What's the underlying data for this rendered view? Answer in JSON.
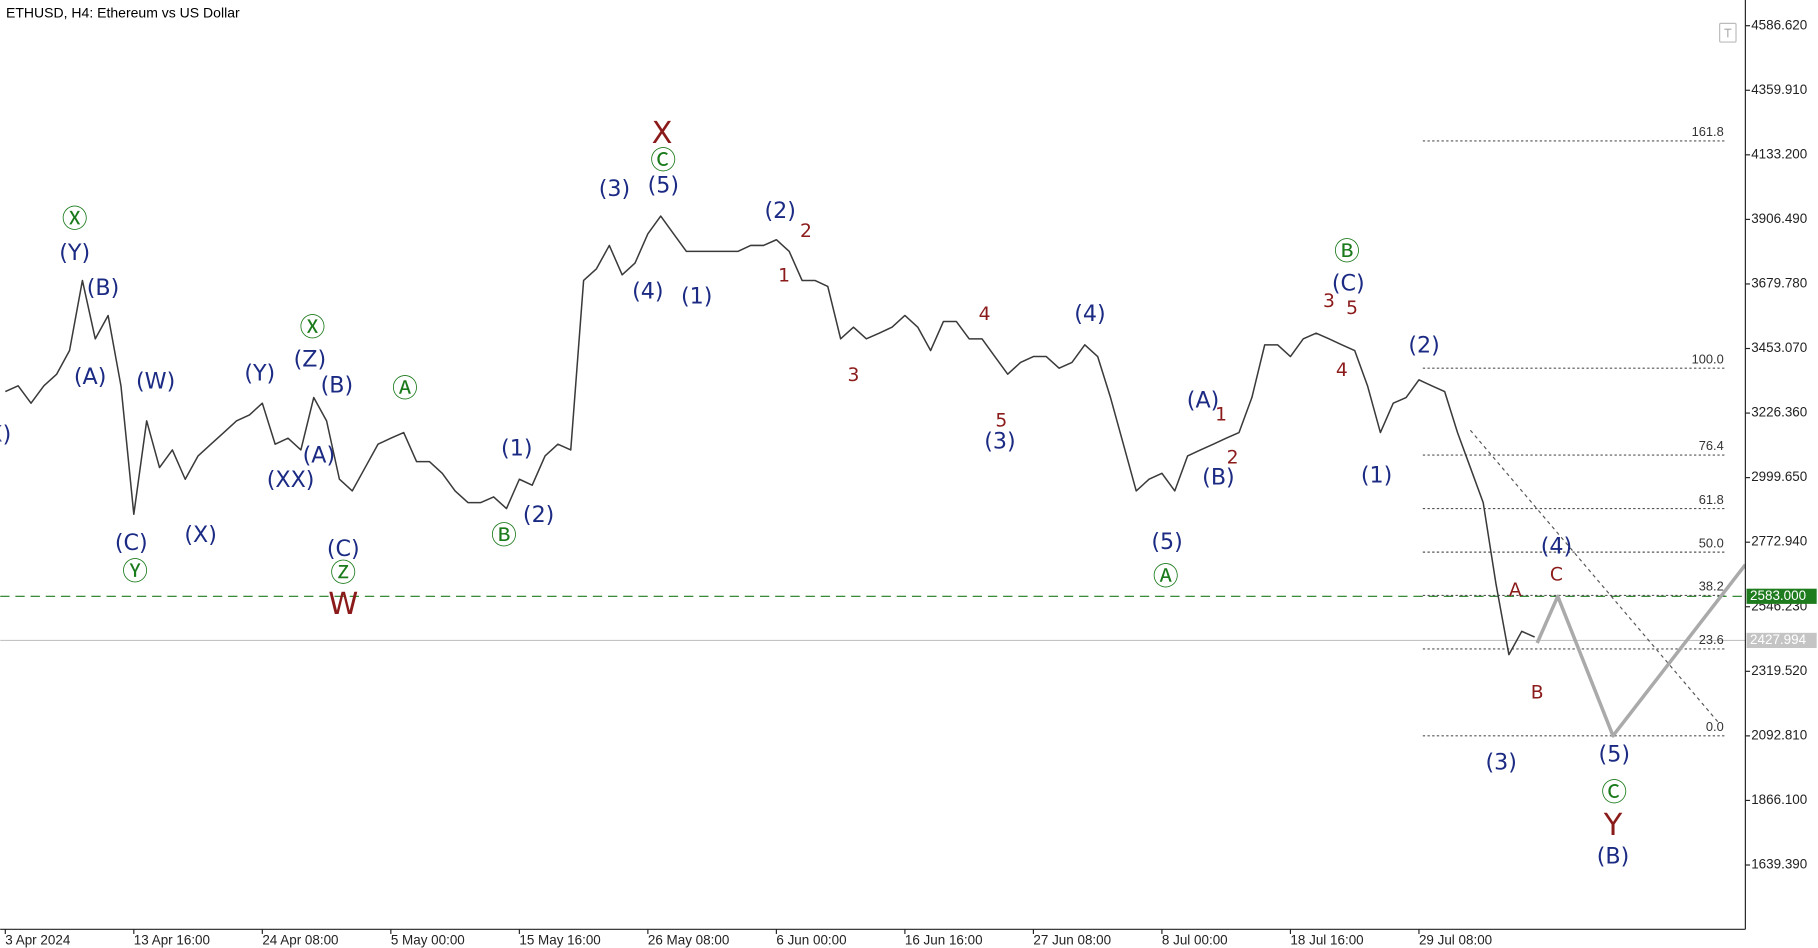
{
  "chart_data": {
    "type": "line",
    "title": "ETHUSD, H4:  Ethereum vs US Dollar",
    "grid": false,
    "xlim": [
      -0.4,
      135.4
    ],
    "xticks": [
      {
        "value": 0,
        "label": "3 Apr 2024"
      },
      {
        "value": 10,
        "label": "13 Apr 16:00"
      },
      {
        "value": 20,
        "label": "24 Apr 08:00"
      },
      {
        "value": 30,
        "label": "5 May 00:00"
      },
      {
        "value": 40,
        "label": "15 May 16:00"
      },
      {
        "value": 50,
        "label": "26 May 08:00"
      },
      {
        "value": 60,
        "label": "6 Jun 00:00"
      },
      {
        "value": 70,
        "label": "16 Jun 16:00"
      },
      {
        "value": 80,
        "label": "27 Jun 08:00"
      },
      {
        "value": 90,
        "label": "8 Jul 00:00"
      },
      {
        "value": 100,
        "label": "18 Jul 16:00"
      },
      {
        "value": 110,
        "label": "29 Jul 08:00"
      }
    ],
    "ylim": [
      1413.6,
      4676.9
    ],
    "yticks": [
      {
        "value": 4586.62,
        "label": "4586.620"
      },
      {
        "value": 4359.91,
        "label": "4359.910"
      },
      {
        "value": 4133.2,
        "label": "4133.200"
      },
      {
        "value": 3906.49,
        "label": "3906.490"
      },
      {
        "value": 3679.78,
        "label": "3679.780"
      },
      {
        "value": 3453.07,
        "label": "3453.070"
      },
      {
        "value": 3226.36,
        "label": "3226.360"
      },
      {
        "value": 2999.65,
        "label": "2999.650"
      },
      {
        "value": 2772.94,
        "label": "2772.940"
      },
      {
        "value": 2546.23,
        "label": "2546.230"
      },
      {
        "value": 2319.52,
        "label": "2319.520"
      },
      {
        "value": 2092.81,
        "label": "2092.810"
      },
      {
        "value": 1866.1,
        "label": "1866.100"
      },
      {
        "value": 1639.39,
        "label": "1639.390"
      }
    ],
    "series": [
      {
        "color": "#3a3a3a",
        "x": [
          0,
          1,
          2,
          3,
          4,
          5,
          6,
          7,
          8,
          9,
          10,
          11,
          12,
          13,
          14,
          15,
          16,
          17,
          18,
          19,
          20,
          21,
          22,
          23,
          24,
          25,
          26,
          27,
          28,
          29,
          30,
          31,
          32,
          33,
          34,
          35,
          36,
          37,
          38,
          39,
          40,
          41,
          42,
          43,
          44,
          45,
          46,
          47,
          48,
          49,
          50,
          51,
          52,
          53,
          54,
          55,
          56,
          57,
          58,
          59,
          60,
          61,
          62,
          63,
          64,
          65,
          66,
          67,
          68,
          69,
          70,
          71,
          72,
          73,
          74,
          75,
          76,
          77,
          78,
          79,
          80,
          81,
          82,
          83,
          84,
          85,
          86,
          87,
          88,
          89,
          90,
          91,
          92,
          93,
          94,
          95,
          96,
          97,
          98,
          99,
          100,
          101,
          102,
          103,
          104,
          105,
          106,
          107,
          108,
          109,
          110,
          111,
          112,
          113,
          114,
          115,
          116,
          117,
          118,
          119
        ],
        "values": [
          3302,
          3322,
          3261,
          3322,
          3363,
          3446,
          3692,
          3487,
          3569,
          3322,
          2871,
          3199,
          3035,
          3097,
          2994,
          3076,
          3117,
          3158,
          3199,
          3220,
          3261,
          3117,
          3138,
          3097,
          3281,
          3199,
          2994,
          2953,
          3035,
          3117,
          3138,
          3158,
          3056,
          3056,
          3015,
          2953,
          2912,
          2912,
          2932,
          2891,
          2994,
          2973,
          3076,
          3117,
          3097,
          3692,
          3733,
          3815,
          3712,
          3753,
          3856,
          3918,
          3856,
          3794,
          3794,
          3794,
          3794,
          3794,
          3815,
          3815,
          3835,
          3794,
          3692,
          3692,
          3671,
          3487,
          3528,
          3487,
          3507,
          3528,
          3569,
          3528,
          3446,
          3548,
          3548,
          3487,
          3487,
          3425,
          3363,
          3404,
          3425,
          3425,
          3384,
          3404,
          3466,
          3425,
          3281,
          3117,
          2953,
          2994,
          3015,
          2953,
          3076,
          3097,
          3117,
          3138,
          3158,
          3281,
          3466,
          3466,
          3425,
          3487,
          3507,
          3487,
          3466,
          3446,
          3322,
          3158,
          3261,
          3281,
          3343,
          3322,
          3302,
          3158,
          3035,
          2912,
          2625,
          2378,
          2460,
          2440
        ]
      }
    ],
    "projection": {
      "color": "#aaaaaa",
      "x": [
        119.2,
        120.8,
        125.1,
        135.4
      ],
      "values": [
        2419,
        2583,
        2093,
        2694
      ]
    },
    "trendline": {
      "color": "#555555",
      "x": [
        114,
        133.3
      ],
      "values": [
        3166,
        2140
      ]
    },
    "price_lines": [
      {
        "value": 2583,
        "label": "2583.000",
        "color": "#1e7b1e",
        "style": "dashed"
      },
      {
        "value": 2427.994,
        "label": "2427.994",
        "color": "#c4c4c4",
        "style": "solid"
      }
    ],
    "fibonacci": {
      "color": "#555555",
      "x": [
        110.3,
        133.9
      ],
      "levels": [
        {
          "label": "161.8",
          "price": 4182
        },
        {
          "label": "100.0",
          "price": 3384
        },
        {
          "label": "76.4",
          "price": 3079
        },
        {
          "label": "61.8",
          "price": 2891
        },
        {
          "label": "50.0",
          "price": 2738
        },
        {
          "label": "38.2",
          "price": 2586
        },
        {
          "label": "23.6",
          "price": 2398
        },
        {
          "label": "0.0",
          "price": 2093
        }
      ]
    },
    "annotations": [
      {
        "text": "(X)",
        "color": "#1b2a83",
        "x": -0.8,
        "y": 3150
      },
      {
        "text": "Ⓧ",
        "color": "#1b7a1b",
        "x": 5.4,
        "y": 3905
      },
      {
        "text": "(Y)",
        "color": "#1b2a83",
        "x": 5.4,
        "y": 3786
      },
      {
        "text": "(B)",
        "color": "#1b2a83",
        "x": 7.6,
        "y": 3663
      },
      {
        "text": "(A)",
        "color": "#1b2a83",
        "x": 6.6,
        "y": 3351
      },
      {
        "text": "(W)",
        "color": "#1b2a83",
        "x": 11.7,
        "y": 3335
      },
      {
        "text": "(C)",
        "color": "#1b2a83",
        "x": 9.8,
        "y": 2768
      },
      {
        "text": "Ⓨ",
        "color": "#1b7a1b",
        "x": 10.1,
        "y": 2666
      },
      {
        "text": "(X)",
        "color": "#1b2a83",
        "x": 15.2,
        "y": 2797
      },
      {
        "text": "(Y)",
        "color": "#1b2a83",
        "x": 19.8,
        "y": 3363
      },
      {
        "text": "Ⓧ",
        "color": "#1b7a1b",
        "x": 23.9,
        "y": 3524
      },
      {
        "text": "(Z)",
        "color": "#1b2a83",
        "x": 23.7,
        "y": 3413
      },
      {
        "text": "(B)",
        "color": "#1b2a83",
        "x": 25.8,
        "y": 3322
      },
      {
        "text": "(A)",
        "color": "#1b2a83",
        "x": 24.4,
        "y": 3076
      },
      {
        "text": "(XX)",
        "color": "#1b2a83",
        "x": 22.2,
        "y": 2990
      },
      {
        "text": "(C)",
        "color": "#1b2a83",
        "x": 26.3,
        "y": 2748
      },
      {
        "text": "Ⓩ",
        "color": "#1b7a1b",
        "x": 26.3,
        "y": 2662
      },
      {
        "text": "W",
        "color": "#8b1a1a",
        "x": 26.3,
        "y": 2551
      },
      {
        "text": "Ⓐ",
        "color": "#1b7a1b",
        "x": 31.1,
        "y": 3310
      },
      {
        "text": "(1)",
        "color": "#1b2a83",
        "x": 39.8,
        "y": 3101
      },
      {
        "text": "(2)",
        "color": "#1b2a83",
        "x": 41.5,
        "y": 2867
      },
      {
        "text": "Ⓑ",
        "color": "#1b7a1b",
        "x": 38.8,
        "y": 2793
      },
      {
        "text": "X",
        "color": "#8b1a1a",
        "x": 51.1,
        "y": 4205
      },
      {
        "text": "Ⓒ",
        "color": "#1b7a1b",
        "x": 51.2,
        "y": 4110
      },
      {
        "text": "(3)",
        "color": "#1b2a83",
        "x": 47.4,
        "y": 4012
      },
      {
        "text": "(5)",
        "color": "#1b2a83",
        "x": 51.2,
        "y": 4024
      },
      {
        "text": "(4)",
        "color": "#1b2a83",
        "x": 50,
        "y": 3651
      },
      {
        "text": "(1)",
        "color": "#1b2a83",
        "x": 53.8,
        "y": 3634
      },
      {
        "text": "(2)",
        "color": "#1b2a83",
        "x": 60.3,
        "y": 3934
      },
      {
        "text": "2",
        "color": "#8b1a1a",
        "x": 62.3,
        "y": 3864
      },
      {
        "text": "1",
        "color": "#8b1a1a",
        "x": 60.6,
        "y": 3708
      },
      {
        "text": "3",
        "color": "#8b1a1a",
        "x": 66,
        "y": 3359
      },
      {
        "text": "4",
        "color": "#8b1a1a",
        "x": 76.2,
        "y": 3573
      },
      {
        "text": "5",
        "color": "#8b1a1a",
        "x": 77.5,
        "y": 3199
      },
      {
        "text": "(3)",
        "color": "#1b2a83",
        "x": 77.4,
        "y": 3125
      },
      {
        "text": "(4)",
        "color": "#1b2a83",
        "x": 84.4,
        "y": 3573
      },
      {
        "text": "(5)",
        "color": "#1b2a83",
        "x": 90.4,
        "y": 2772
      },
      {
        "text": "Ⓐ",
        "color": "#1b7a1b",
        "x": 90.3,
        "y": 2649
      },
      {
        "text": "(A)",
        "color": "#1b2a83",
        "x": 93.2,
        "y": 3269
      },
      {
        "text": "1",
        "color": "#8b1a1a",
        "x": 94.6,
        "y": 3220
      },
      {
        "text": "2",
        "color": "#8b1a1a",
        "x": 95.5,
        "y": 3068
      },
      {
        "text": "(B)",
        "color": "#1b2a83",
        "x": 94.4,
        "y": 2998
      },
      {
        "text": "Ⓑ",
        "color": "#1b7a1b",
        "x": 104.4,
        "y": 3790
      },
      {
        "text": "(C)",
        "color": "#1b2a83",
        "x": 104.5,
        "y": 3679
      },
      {
        "text": "3",
        "color": "#8b1a1a",
        "x": 103,
        "y": 3618
      },
      {
        "text": "5",
        "color": "#8b1a1a",
        "x": 104.8,
        "y": 3593
      },
      {
        "text": "4",
        "color": "#8b1a1a",
        "x": 104,
        "y": 3376
      },
      {
        "text": "(1)",
        "color": "#1b2a83",
        "x": 106.7,
        "y": 3006
      },
      {
        "text": "(2)",
        "color": "#1b2a83",
        "x": 110.4,
        "y": 3462
      },
      {
        "text": "(3)",
        "color": "#1b2a83",
        "x": 116.4,
        "y": 1997
      },
      {
        "text": "A",
        "color": "#8b1a1a",
        "x": 117.5,
        "y": 2604
      },
      {
        "text": "(4)",
        "color": "#1b2a83",
        "x": 120.7,
        "y": 2756
      },
      {
        "text": "C",
        "color": "#8b1a1a",
        "x": 120.7,
        "y": 2657
      },
      {
        "text": "B",
        "color": "#8b1a1a",
        "x": 119.2,
        "y": 2243
      },
      {
        "text": "(5)",
        "color": "#1b2a83",
        "x": 125.2,
        "y": 2025
      },
      {
        "text": "Ⓒ",
        "color": "#1b7a1b",
        "x": 125.2,
        "y": 1890
      },
      {
        "text": "Y",
        "color": "#8b1a1a",
        "x": 125.1,
        "y": 1775
      },
      {
        "text": "(B)",
        "color": "#1b2a83",
        "x": 125.1,
        "y": 1668
      }
    ]
  }
}
